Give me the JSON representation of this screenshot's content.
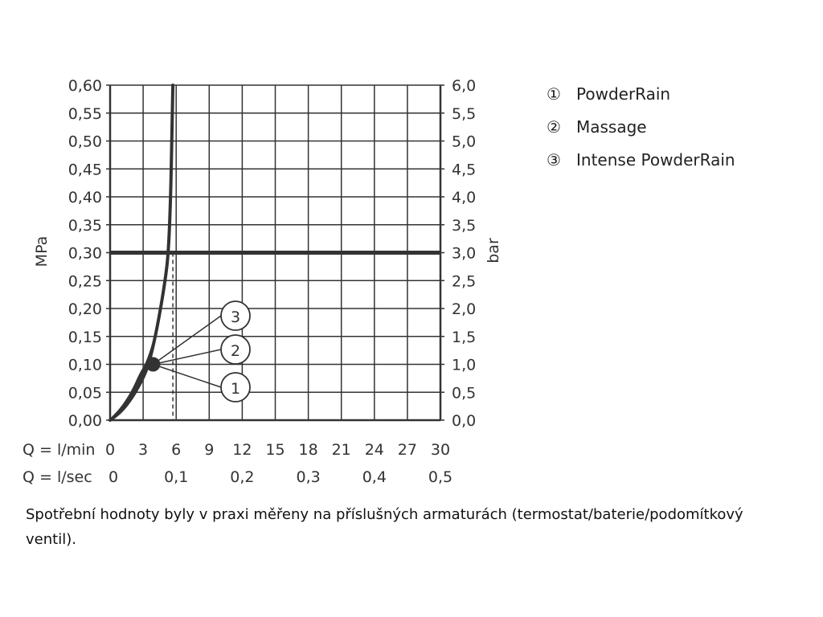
{
  "chart_data": {
    "type": "line",
    "y_left_label": "MPa",
    "y_right_label": "bar",
    "x_primary_label": "Q = l/min",
    "x_secondary_label": "Q = l/sec",
    "x_range": [
      0,
      30
    ],
    "y_range": [
      0,
      0.6
    ],
    "x_ticks": [
      "0",
      "3",
      "6",
      "9",
      "12",
      "15",
      "18",
      "21",
      "24",
      "27",
      "30"
    ],
    "x_secondary_ticks": [
      "0",
      "0,1",
      "0,2",
      "0,3",
      "0,4",
      "0,5"
    ],
    "y_left_ticks": [
      "0,00",
      "0,05",
      "0,10",
      "0,15",
      "0,20",
      "0,25",
      "0,30",
      "0,35",
      "0,40",
      "0,45",
      "0,50",
      "0,55",
      "0,60"
    ],
    "y_right_ticks": [
      "0,0",
      "0,5",
      "1,0",
      "1,5",
      "2,0",
      "2,5",
      "3,0",
      "3,5",
      "4,0",
      "4,5",
      "5,0",
      "5,5",
      "6,0"
    ],
    "grid": true,
    "reference_line_y": 0.3,
    "reference_flow_x": 5.7,
    "series": [
      {
        "name": "PowderRain",
        "marker": "1",
        "points": [
          [
            0,
            0
          ],
          [
            1,
            0.015
          ],
          [
            2,
            0.04
          ],
          [
            3,
            0.075
          ],
          [
            3.5,
            0.1
          ],
          [
            4,
            0.14
          ],
          [
            4.5,
            0.19
          ],
          [
            5,
            0.25
          ],
          [
            5.3,
            0.3
          ],
          [
            5.5,
            0.4
          ],
          [
            5.6,
            0.5
          ],
          [
            5.7,
            0.6
          ]
        ]
      },
      {
        "name": "Massage",
        "marker": "2",
        "points": [
          [
            0,
            0
          ],
          [
            1,
            0.02
          ],
          [
            2,
            0.045
          ],
          [
            2.8,
            0.08
          ],
          [
            3.4,
            0.1
          ],
          [
            4,
            0.14
          ],
          [
            4.5,
            0.19
          ],
          [
            5,
            0.25
          ],
          [
            5.3,
            0.3
          ],
          [
            5.5,
            0.4
          ],
          [
            5.6,
            0.5
          ],
          [
            5.7,
            0.6
          ]
        ]
      },
      {
        "name": "Intense PowderRain",
        "marker": "3",
        "points": [
          [
            0,
            0
          ],
          [
            1,
            0.02
          ],
          [
            2,
            0.05
          ],
          [
            2.8,
            0.085
          ],
          [
            3.3,
            0.1
          ],
          [
            4,
            0.14
          ],
          [
            4.5,
            0.19
          ],
          [
            5,
            0.25
          ],
          [
            5.3,
            0.3
          ],
          [
            5.5,
            0.4
          ],
          [
            5.6,
            0.5
          ],
          [
            5.7,
            0.6
          ]
        ]
      }
    ],
    "highlight_point": [
      3.9,
      0.1
    ],
    "legend": [
      {
        "marker": "①",
        "label": "PowderRain"
      },
      {
        "marker": "②",
        "label": "Massage"
      },
      {
        "marker": "③",
        "label": "Intense PowderRain"
      }
    ],
    "legend_position": "top-right"
  },
  "footnote": "Spotřební hodnoty byly v praxi měřeny na příslušných armaturách (termostat/baterie/podomítkový ventil)."
}
